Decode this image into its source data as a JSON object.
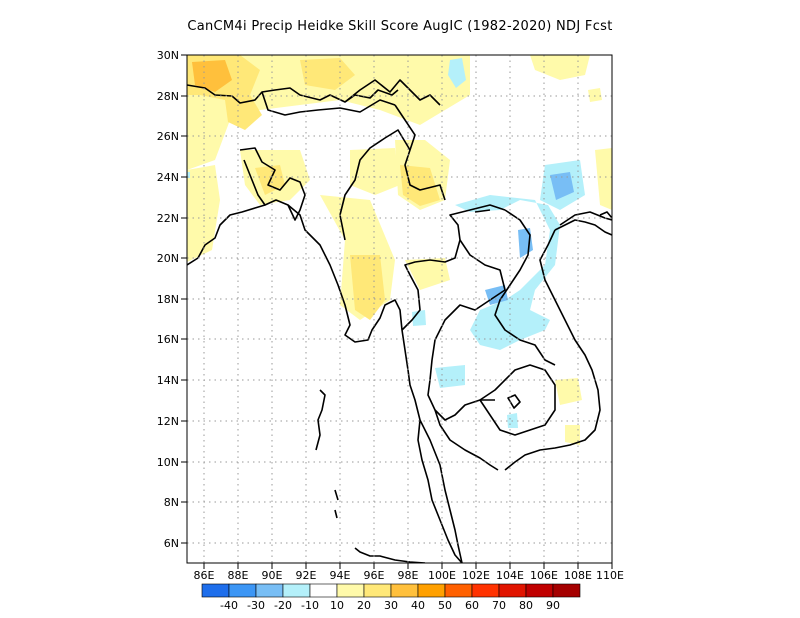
{
  "title": "CanCM4i Precip Heidke Skill Score AugIC (1982-2020) NDJ Fcst",
  "lat_labels": [
    "30N",
    "28N",
    "26N",
    "24N",
    "22N",
    "20N",
    "18N",
    "16N",
    "14N",
    "12N",
    "10N",
    "8N",
    "6N"
  ],
  "lon_labels": [
    "86E",
    "88E",
    "90E",
    "92E",
    "94E",
    "96E",
    "98E",
    "100E",
    "102E",
    "104E",
    "106E",
    "108E",
    "110E"
  ],
  "colorbar": {
    "colors": [
      "#1e6eeb",
      "#3c96f5",
      "#78bef5",
      "#b4f0fa",
      "#ffffff",
      "#fffaaa",
      "#ffe878",
      "#ffc03c",
      "#ffa000",
      "#ff6000",
      "#ff3200",
      "#e11400",
      "#c00000",
      "#a50000"
    ],
    "labels": [
      "-40",
      "-30",
      "-20",
      "-10",
      "10",
      "20",
      "30",
      "40",
      "50",
      "60",
      "70",
      "80",
      "90"
    ]
  },
  "features": {
    "positive_skill_colors": [
      "#fffaaa",
      "#ffe878",
      "#ffc03c"
    ],
    "negative_skill_colors": [
      "#b4f0fa",
      "#78bef5",
      "#3c96f5"
    ]
  }
}
